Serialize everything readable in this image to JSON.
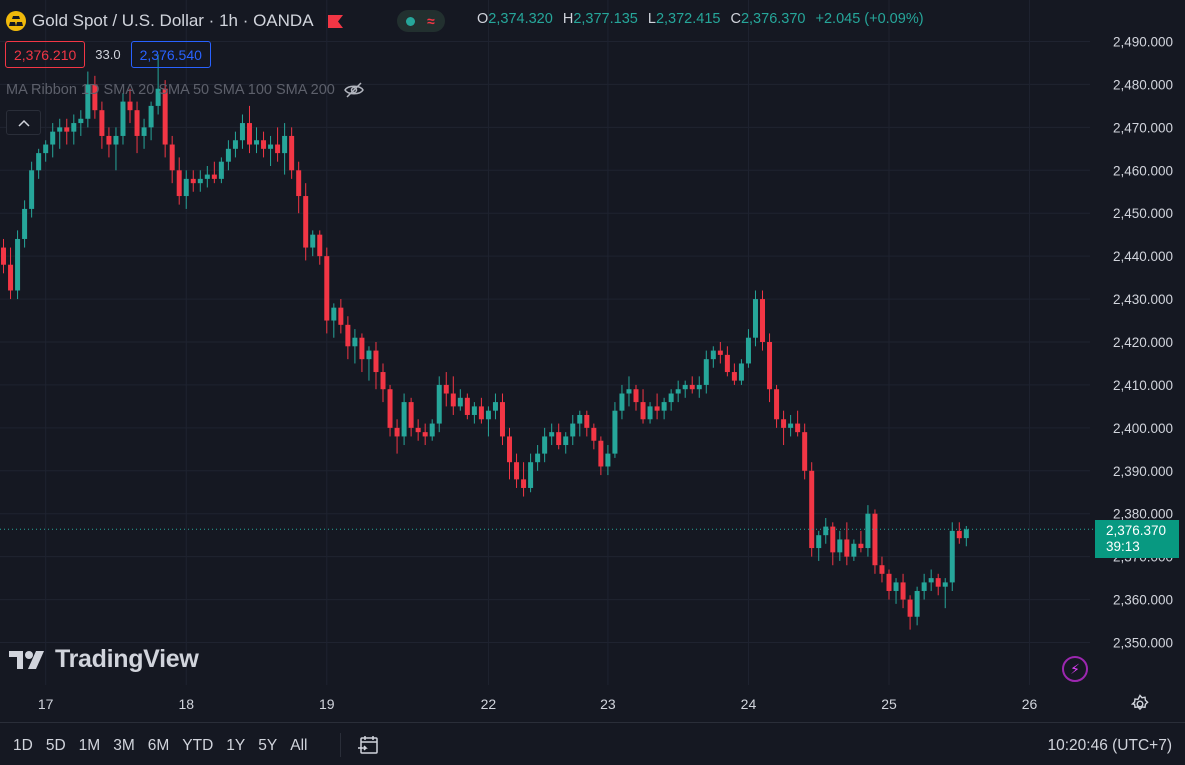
{
  "header": {
    "title": "Gold Spot / U.S. Dollar · 1h · OANDA",
    "ohlc": {
      "open_label": "O",
      "open": "2,374.320",
      "high_label": "H",
      "high": "2,377.135",
      "low_label": "L",
      "low": "2,372.415",
      "close_label": "C",
      "close": "2,376.370",
      "change": "+2.045 (+0.09%)"
    },
    "sell_price": "2,376.210",
    "spread": "33.0",
    "buy_price": "2,376.540",
    "indicator_label": "MA Ribbon 1D SMA 20 SMA 50 SMA 100 SMA 200",
    "colors": {
      "up": "#26a69a",
      "down": "#f23645",
      "buy": "#2962ff",
      "background": "#151822"
    }
  },
  "price_tag": {
    "price": "2,376.370",
    "countdown": "39:13"
  },
  "watermark": "TradingView",
  "bottom_bar": {
    "ranges": [
      "1D",
      "5D",
      "1M",
      "3M",
      "6M",
      "YTD",
      "1Y",
      "5Y",
      "All"
    ],
    "time": "10:20:46 (UTC+7)"
  },
  "chart_data": {
    "type": "candlestick",
    "title": "Gold Spot / U.S. Dollar · 1h · OANDA",
    "ylim": [
      2345,
      2492
    ],
    "y_ticks": [
      {
        "value": 2350,
        "label": "2,350.000"
      },
      {
        "value": 2360,
        "label": "2,360.000"
      },
      {
        "value": 2370,
        "label": "2,370.000"
      },
      {
        "value": 2380,
        "label": "2,380.000"
      },
      {
        "value": 2390,
        "label": "2,390.000"
      },
      {
        "value": 2400,
        "label": "2,400.000"
      },
      {
        "value": 2410,
        "label": "2,410.000"
      },
      {
        "value": 2420,
        "label": "2,420.000"
      },
      {
        "value": 2430,
        "label": "2,430.000"
      },
      {
        "value": 2440,
        "label": "2,440.000"
      },
      {
        "value": 2450,
        "label": "2,450.000"
      },
      {
        "value": 2460,
        "label": "2,460.000"
      },
      {
        "value": 2470,
        "label": "2,470.000"
      },
      {
        "value": 2480,
        "label": "2,480.000"
      },
      {
        "value": 2490,
        "label": "2,490.000"
      }
    ],
    "x_ticks": [
      {
        "index": 6,
        "label": "17"
      },
      {
        "index": 26,
        "label": "18"
      },
      {
        "index": 46,
        "label": "19"
      },
      {
        "index": 69,
        "label": "22"
      },
      {
        "index": 86,
        "label": "23"
      },
      {
        "index": 106,
        "label": "24"
      },
      {
        "index": 126,
        "label": "25"
      },
      {
        "index": 146,
        "label": "26"
      }
    ],
    "current_price": 2376.37,
    "x_range": [
      -0.5,
      154.6
    ],
    "ohlc": [
      [
        2442.0,
        2444.0,
        2436.0,
        2438.0
      ],
      [
        2438.0,
        2442.0,
        2430.0,
        2432.0
      ],
      [
        2432.0,
        2446.0,
        2430.0,
        2444.0
      ],
      [
        2444.0,
        2453.0,
        2442.0,
        2451.0
      ],
      [
        2451.0,
        2462.0,
        2449.0,
        2460.0
      ],
      [
        2460.0,
        2465.0,
        2458.0,
        2464.0
      ],
      [
        2464.0,
        2467.0,
        2462.0,
        2466.0
      ],
      [
        2466.0,
        2471.0,
        2463.0,
        2469.0
      ],
      [
        2469.0,
        2472.0,
        2465.0,
        2470.0
      ],
      [
        2470.0,
        2472.0,
        2466.0,
        2469.0
      ],
      [
        2469.0,
        2473.0,
        2466.0,
        2471.0
      ],
      [
        2471.0,
        2474.0,
        2468.0,
        2472.0
      ],
      [
        2472.0,
        2483.0,
        2470.0,
        2480.0
      ],
      [
        2480.0,
        2482.0,
        2472.0,
        2474.0
      ],
      [
        2474.0,
        2476.0,
        2465.0,
        2468.0
      ],
      [
        2468.0,
        2470.0,
        2463.0,
        2466.0
      ],
      [
        2466.0,
        2470.0,
        2460.0,
        2468.0
      ],
      [
        2468.0,
        2478.0,
        2466.0,
        2476.0
      ],
      [
        2476.0,
        2479.0,
        2471.0,
        2474.0
      ],
      [
        2474.0,
        2476.0,
        2464.0,
        2468.0
      ],
      [
        2468.0,
        2472.0,
        2465.0,
        2470.0
      ],
      [
        2470.0,
        2476.0,
        2467.0,
        2475.0
      ],
      [
        2475.0,
        2487.0,
        2473.0,
        2479.0
      ],
      [
        2479.0,
        2481.0,
        2463.0,
        2466.0
      ],
      [
        2466.0,
        2468.0,
        2457.0,
        2460.0
      ],
      [
        2460.0,
        2463.0,
        2452.0,
        2454.0
      ],
      [
        2454.0,
        2460.0,
        2451.0,
        2458.0
      ],
      [
        2458.0,
        2460.0,
        2455.0,
        2457.0
      ],
      [
        2457.0,
        2460.0,
        2455.0,
        2458.0
      ],
      [
        2458.0,
        2461.0,
        2456.0,
        2459.0
      ],
      [
        2459.0,
        2462.0,
        2457.0,
        2458.0
      ],
      [
        2458.0,
        2463.0,
        2457.0,
        2462.0
      ],
      [
        2462.0,
        2467.0,
        2460.0,
        2465.0
      ],
      [
        2465.0,
        2469.0,
        2463.0,
        2467.0
      ],
      [
        2467.0,
        2473.0,
        2465.0,
        2471.0
      ],
      [
        2471.0,
        2475.0,
        2464.0,
        2466.0
      ],
      [
        2466.0,
        2470.0,
        2464.0,
        2467.0
      ],
      [
        2467.0,
        2469.0,
        2463.0,
        2465.0
      ],
      [
        2465.0,
        2468.0,
        2461.0,
        2466.0
      ],
      [
        2466.0,
        2470.0,
        2462.0,
        2464.0
      ],
      [
        2464.0,
        2471.0,
        2459.0,
        2468.0
      ],
      [
        2468.0,
        2470.0,
        2458.0,
        2460.0
      ],
      [
        2460.0,
        2462.0,
        2450.0,
        2454.0
      ],
      [
        2454.0,
        2457.0,
        2439.0,
        2442.0
      ],
      [
        2442.0,
        2446.0,
        2440.0,
        2445.0
      ],
      [
        2445.0,
        2446.0,
        2438.0,
        2440.0
      ],
      [
        2440.0,
        2442.0,
        2422.0,
        2425.0
      ],
      [
        2425.0,
        2429.0,
        2421.0,
        2428.0
      ],
      [
        2428.0,
        2430.0,
        2422.0,
        2424.0
      ],
      [
        2424.0,
        2426.0,
        2416.0,
        2419.0
      ],
      [
        2419.0,
        2423.0,
        2415.0,
        2421.0
      ],
      [
        2421.0,
        2422.0,
        2413.0,
        2416.0
      ],
      [
        2416.0,
        2419.0,
        2411.0,
        2418.0
      ],
      [
        2418.0,
        2420.0,
        2409.0,
        2413.0
      ],
      [
        2413.0,
        2415.0,
        2406.0,
        2409.0
      ],
      [
        2409.0,
        2410.0,
        2398.0,
        2400.0
      ],
      [
        2400.0,
        2402.0,
        2394.0,
        2398.0
      ],
      [
        2398.0,
        2408.0,
        2396.0,
        2406.0
      ],
      [
        2406.0,
        2407.0,
        2398.0,
        2400.0
      ],
      [
        2400.0,
        2402.0,
        2397.0,
        2399.0
      ],
      [
        2399.0,
        2401.0,
        2396.0,
        2398.0
      ],
      [
        2398.0,
        2402.0,
        2397.0,
        2401.0
      ],
      [
        2401.0,
        2412.0,
        2399.0,
        2410.0
      ],
      [
        2410.0,
        2413.0,
        2405.0,
        2408.0
      ],
      [
        2408.0,
        2412.0,
        2403.0,
        2405.0
      ],
      [
        2405.0,
        2409.0,
        2404.0,
        2407.0
      ],
      [
        2407.0,
        2408.0,
        2402.0,
        2403.0
      ],
      [
        2403.0,
        2406.0,
        2401.0,
        2405.0
      ],
      [
        2405.0,
        2407.0,
        2401.0,
        2402.0
      ],
      [
        2402.0,
        2405.0,
        2398.0,
        2404.0
      ],
      [
        2404.0,
        2408.0,
        2402.0,
        2406.0
      ],
      [
        2406.0,
        2408.0,
        2396.0,
        2398.0
      ],
      [
        2398.0,
        2400.0,
        2388.0,
        2392.0
      ],
      [
        2392.0,
        2394.0,
        2386.0,
        2388.0
      ],
      [
        2388.0,
        2392.0,
        2384.0,
        2386.0
      ],
      [
        2386.0,
        2394.0,
        2385.0,
        2392.0
      ],
      [
        2392.0,
        2396.0,
        2390.0,
        2394.0
      ],
      [
        2394.0,
        2400.0,
        2392.0,
        2398.0
      ],
      [
        2398.0,
        2401.0,
        2396.0,
        2399.0
      ],
      [
        2399.0,
        2401.0,
        2395.0,
        2396.0
      ],
      [
        2396.0,
        2399.0,
        2394.0,
        2398.0
      ],
      [
        2398.0,
        2403.0,
        2396.0,
        2401.0
      ],
      [
        2401.0,
        2404.0,
        2398.0,
        2403.0
      ],
      [
        2403.0,
        2404.0,
        2398.0,
        2400.0
      ],
      [
        2400.0,
        2401.0,
        2395.0,
        2397.0
      ],
      [
        2397.0,
        2398.0,
        2389.0,
        2391.0
      ],
      [
        2391.0,
        2396.0,
        2389.0,
        2394.0
      ],
      [
        2394.0,
        2406.0,
        2393.0,
        2404.0
      ],
      [
        2404.0,
        2410.0,
        2402.0,
        2408.0
      ],
      [
        2408.0,
        2412.0,
        2405.0,
        2409.0
      ],
      [
        2409.0,
        2410.0,
        2404.0,
        2406.0
      ],
      [
        2406.0,
        2409.0,
        2401.0,
        2402.0
      ],
      [
        2402.0,
        2406.0,
        2401.0,
        2405.0
      ],
      [
        2405.0,
        2408.0,
        2402.0,
        2404.0
      ],
      [
        2404.0,
        2407.0,
        2402.0,
        2406.0
      ],
      [
        2406.0,
        2409.0,
        2404.0,
        2408.0
      ],
      [
        2408.0,
        2411.0,
        2406.0,
        2409.0
      ],
      [
        2409.0,
        2411.0,
        2407.0,
        2410.0
      ],
      [
        2410.0,
        2412.0,
        2408.0,
        2409.0
      ],
      [
        2409.0,
        2412.0,
        2407.0,
        2410.0
      ],
      [
        2410.0,
        2418.0,
        2408.0,
        2416.0
      ],
      [
        2416.0,
        2419.0,
        2414.0,
        2418.0
      ],
      [
        2418.0,
        2420.0,
        2415.0,
        2417.0
      ],
      [
        2417.0,
        2419.0,
        2412.0,
        2413.0
      ],
      [
        2413.0,
        2415.0,
        2410.0,
        2411.0
      ],
      [
        2411.0,
        2416.0,
        2410.0,
        2415.0
      ],
      [
        2415.0,
        2423.0,
        2414.0,
        2421.0
      ],
      [
        2421.0,
        2432.0,
        2419.0,
        2430.0
      ],
      [
        2430.0,
        2432.0,
        2418.0,
        2420.0
      ],
      [
        2420.0,
        2422.0,
        2406.0,
        2409.0
      ],
      [
        2409.0,
        2410.0,
        2400.0,
        2402.0
      ],
      [
        2402.0,
        2404.0,
        2396.0,
        2400.0
      ],
      [
        2400.0,
        2403.0,
        2398.0,
        2401.0
      ],
      [
        2401.0,
        2404.0,
        2398.0,
        2399.0
      ],
      [
        2399.0,
        2401.0,
        2388.0,
        2390.0
      ],
      [
        2390.0,
        2392.0,
        2370.0,
        2372.0
      ],
      [
        2372.0,
        2376.0,
        2369.0,
        2375.0
      ],
      [
        2375.0,
        2379.0,
        2373.0,
        2377.0
      ],
      [
        2377.0,
        2378.0,
        2368.0,
        2371.0
      ],
      [
        2371.0,
        2376.0,
        2369.0,
        2374.0
      ],
      [
        2374.0,
        2378.0,
        2368.0,
        2370.0
      ],
      [
        2370.0,
        2374.0,
        2369.0,
        2373.0
      ],
      [
        2373.0,
        2376.0,
        2371.0,
        2372.0
      ],
      [
        2372.0,
        2382.0,
        2370.0,
        2380.0
      ],
      [
        2380.0,
        2381.0,
        2366.0,
        2368.0
      ],
      [
        2368.0,
        2370.0,
        2364.0,
        2366.0
      ],
      [
        2366.0,
        2367.0,
        2360.0,
        2362.0
      ],
      [
        2362.0,
        2365.0,
        2359.0,
        2364.0
      ],
      [
        2364.0,
        2366.0,
        2358.0,
        2360.0
      ],
      [
        2360.0,
        2361.0,
        2353.0,
        2356.0
      ],
      [
        2356.0,
        2363.0,
        2354.0,
        2362.0
      ],
      [
        2362.0,
        2366.0,
        2360.0,
        2364.0
      ],
      [
        2364.0,
        2367.0,
        2362.0,
        2365.0
      ],
      [
        2365.0,
        2366.0,
        2361.0,
        2363.0
      ],
      [
        2363.0,
        2365.0,
        2358.0,
        2364.0
      ],
      [
        2364.0,
        2378.0,
        2362.0,
        2376.0
      ],
      [
        2376.0,
        2378.0,
        2373.0,
        2374.3
      ],
      [
        2374.32,
        2377.135,
        2372.415,
        2376.37
      ]
    ]
  }
}
